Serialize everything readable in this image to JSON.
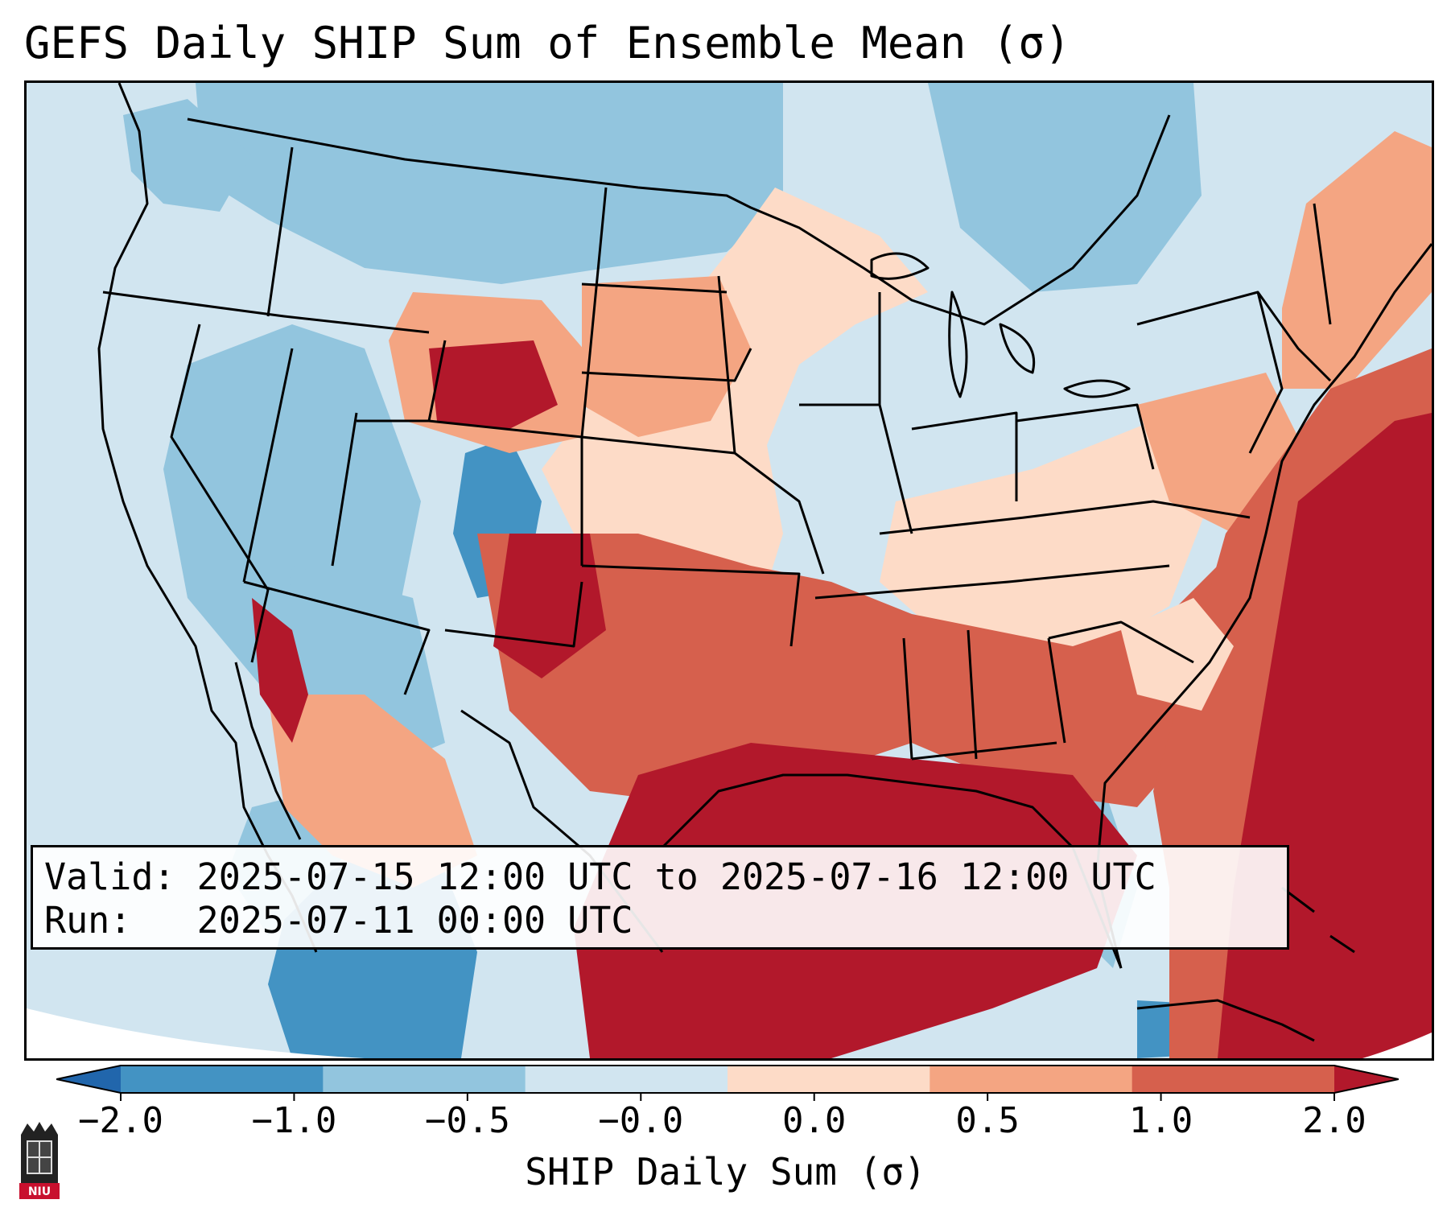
{
  "map": {
    "title": "GEFS Daily SHIP Sum of Ensemble Mean (σ)",
    "valid_line": "Valid: 2025-07-15 12:00 UTC to 2025-07-16 12:00 UTC",
    "run_line": "Run:   2025-07-11 00:00 UTC",
    "region": "Continental United States, southern Canada, northern Mexico",
    "colorbar": {
      "label": "SHIP Daily Sum (σ)",
      "ticks": [
        "−2.0",
        "−1.0",
        "−0.5",
        "−0.0",
        "0.0",
        "0.5",
        "1.0",
        "2.0"
      ],
      "bins": [
        {
          "range": "< -2.0",
          "color": "#2166ac"
        },
        {
          "range": "-2.0 to -1.0",
          "color": "#4393c3"
        },
        {
          "range": "-1.0 to -0.5",
          "color": "#92c5de"
        },
        {
          "range": "-0.5 to 0.0",
          "color": "#d1e5f0"
        },
        {
          "range": "0.0",
          "color": "#ffffff"
        },
        {
          "range": "0.0 to 0.5",
          "color": "#fddbc7"
        },
        {
          "range": "0.5 to 1.0",
          "color": "#f4a582"
        },
        {
          "range": "1.0 to 2.0",
          "color": "#d6604d"
        },
        {
          "range": "> 2.0",
          "color": "#b2182b"
        }
      ]
    },
    "regions": [
      {
        "name": "Gulf of Mexico and western Atlantic",
        "value_sigma": "> 2.0"
      },
      {
        "name": "Wyoming / Colorado high plains",
        "value_sigma": "> 2.0"
      },
      {
        "name": "New Mexico / west Texas",
        "value_sigma": "1.0 to 2.0"
      },
      {
        "name": "Southeast and Mississippi valley",
        "value_sigma": "1.0 to 2.0"
      },
      {
        "name": "Central plains",
        "value_sigma": "0.5 to 1.0"
      },
      {
        "name": "Great Lakes and Northeast",
        "value_sigma": "-0.5 to 0.0"
      },
      {
        "name": "Great Basin / Four Corners",
        "value_sigma": "-1.0 to -0.5"
      },
      {
        "name": "Northern Mexico",
        "value_sigma": "-2.0 to -1.0"
      }
    ]
  },
  "logo": {
    "text": "NIU"
  }
}
